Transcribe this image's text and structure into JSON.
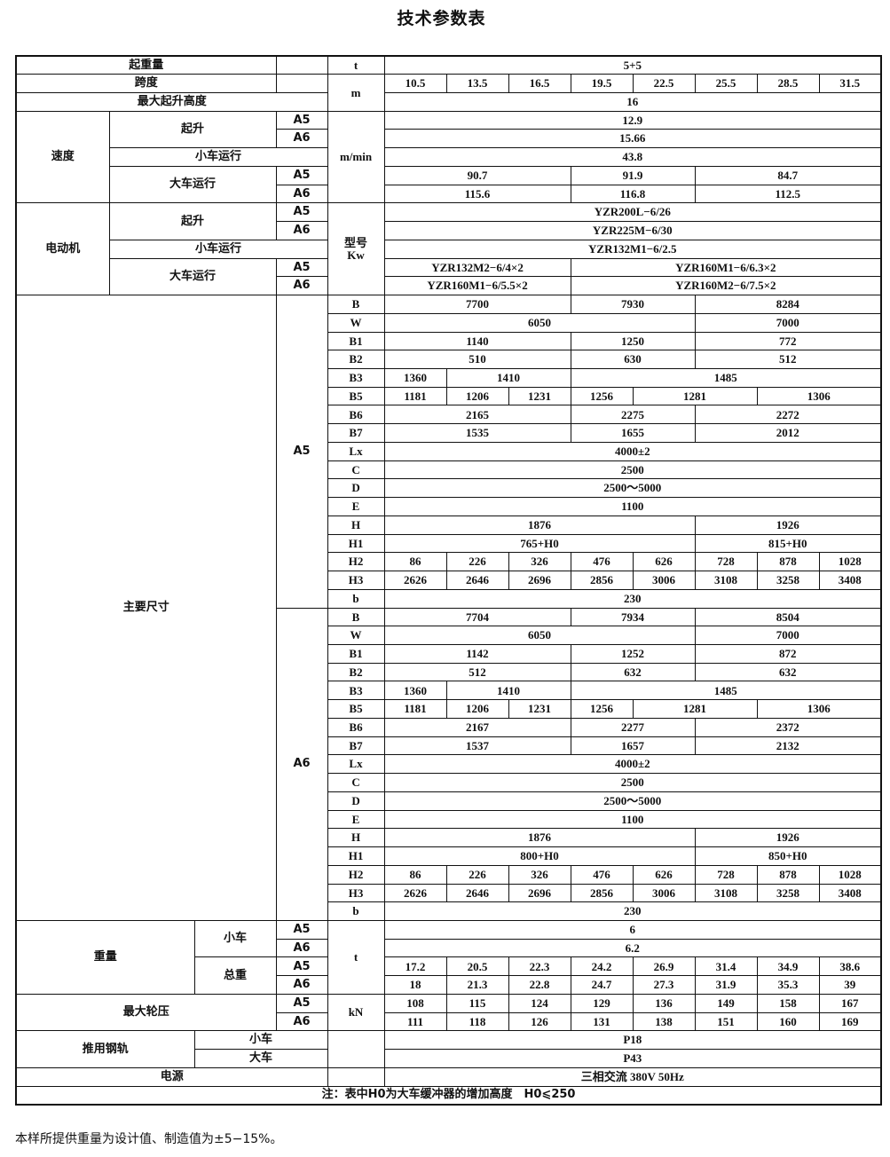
{
  "title": "技术参数表",
  "labels": {
    "capacity": "起重量",
    "span": "跨度",
    "max_lift_height": "最大起升高度",
    "speed": "速度",
    "hoist": "起升",
    "trolley_travel": "小车运行",
    "crane_travel": "大车运行",
    "motor": "电动机",
    "main_dims": "主要尺寸",
    "weight": "重量",
    "trolley": "小车",
    "total_weight": "总重",
    "max_wheel_load": "最大轮压",
    "rail": "推用钢轨",
    "crane": "大车",
    "power": "电源",
    "a5": "A5",
    "a6": "A6",
    "note": "注：表中H0为大车缓冲器的增加高度　H0⩽250"
  },
  "units": {
    "t": "t",
    "m": "m",
    "m_min": "m/min",
    "motor": "型号\nKw",
    "kN": "kN"
  },
  "capacity": [
    {
      "v": "5+5",
      "n": 8
    }
  ],
  "spans": [
    {
      "v": "10.5",
      "n": 1
    },
    {
      "v": "13.5",
      "n": 1
    },
    {
      "v": "16.5",
      "n": 1
    },
    {
      "v": "19.5",
      "n": 1
    },
    {
      "v": "22.5",
      "n": 1
    },
    {
      "v": "25.5",
      "n": 1
    },
    {
      "v": "28.5",
      "n": 1
    },
    {
      "v": "31.5",
      "n": 1
    }
  ],
  "max_lift_height": [
    {
      "v": "16",
      "n": 8
    }
  ],
  "speed": {
    "hoist_a5": [
      {
        "v": "12.9",
        "n": 8
      }
    ],
    "hoist_a6": [
      {
        "v": "15.66",
        "n": 8
      }
    ],
    "trolley": [
      {
        "v": "43.8",
        "n": 8
      }
    ],
    "crane_a5": [
      {
        "v": "90.7",
        "n": 3
      },
      {
        "v": "91.9",
        "n": 2
      },
      {
        "v": "84.7",
        "n": 3
      }
    ],
    "crane_a6": [
      {
        "v": "115.6",
        "n": 3
      },
      {
        "v": "116.8",
        "n": 2
      },
      {
        "v": "112.5",
        "n": 3
      }
    ]
  },
  "motor": {
    "hoist_a5": [
      {
        "v": "YZR200L−6/26",
        "n": 8
      }
    ],
    "hoist_a6": [
      {
        "v": "YZR225M−6/30",
        "n": 8
      }
    ],
    "trolley": [
      {
        "v": "YZR132M1−6/2.5",
        "n": 8
      }
    ],
    "crane_a5": [
      {
        "v": "YZR132M2−6/4×2",
        "n": 3
      },
      {
        "v": "YZR160M1−6/6.3×2",
        "n": 5
      }
    ],
    "crane_a6": [
      {
        "v": "YZR160M1−6/5.5×2",
        "n": 3
      },
      {
        "v": "YZR160M2−6/7.5×2",
        "n": 5
      }
    ]
  },
  "dims": {
    "a5": [
      {
        "label": "B",
        "cells": [
          {
            "v": "7700",
            "n": 3
          },
          {
            "v": "7930",
            "n": 2
          },
          {
            "v": "8284",
            "n": 3
          }
        ]
      },
      {
        "label": "W",
        "cells": [
          {
            "v": "6050",
            "n": 5
          },
          {
            "v": "7000",
            "n": 3
          }
        ]
      },
      {
        "label": "B1",
        "cells": [
          {
            "v": "1140",
            "n": 3
          },
          {
            "v": "1250",
            "n": 2
          },
          {
            "v": "772",
            "n": 3
          }
        ]
      },
      {
        "label": "B2",
        "cells": [
          {
            "v": "510",
            "n": 3
          },
          {
            "v": "630",
            "n": 2
          },
          {
            "v": "512",
            "n": 3
          }
        ]
      },
      {
        "label": "B3",
        "cells": [
          {
            "v": "1360",
            "n": 1
          },
          {
            "v": "1410",
            "n": 2
          },
          {
            "v": "1485",
            "n": 5
          }
        ]
      },
      {
        "label": "B5",
        "cells": [
          {
            "v": "1181",
            "n": 1
          },
          {
            "v": "1206",
            "n": 1
          },
          {
            "v": "1231",
            "n": 1
          },
          {
            "v": "1256",
            "n": 1
          },
          {
            "v": "1281",
            "n": 2
          },
          {
            "v": "1306",
            "n": 2
          }
        ]
      },
      {
        "label": "B6",
        "cells": [
          {
            "v": "2165",
            "n": 3
          },
          {
            "v": "2275",
            "n": 2
          },
          {
            "v": "2272",
            "n": 3
          }
        ]
      },
      {
        "label": "B7",
        "cells": [
          {
            "v": "1535",
            "n": 3
          },
          {
            "v": "1655",
            "n": 2
          },
          {
            "v": "2012",
            "n": 3
          }
        ]
      },
      {
        "label": "Lx",
        "cells": [
          {
            "v": "4000±2",
            "n": 8
          }
        ]
      },
      {
        "label": "C",
        "cells": [
          {
            "v": "2500",
            "n": 8
          }
        ]
      },
      {
        "label": "D",
        "cells": [
          {
            "v": "2500～5000",
            "n": 8
          }
        ]
      },
      {
        "label": "E",
        "cells": [
          {
            "v": "1100",
            "n": 8
          }
        ]
      },
      {
        "label": "H",
        "cells": [
          {
            "v": "1876",
            "n": 5
          },
          {
            "v": "1926",
            "n": 3
          }
        ]
      },
      {
        "label": "H1",
        "cells": [
          {
            "v": "765+H0",
            "n": 5
          },
          {
            "v": "815+H0",
            "n": 3
          }
        ]
      },
      {
        "label": "H2",
        "cells": [
          {
            "v": "86",
            "n": 1
          },
          {
            "v": "226",
            "n": 1
          },
          {
            "v": "326",
            "n": 1
          },
          {
            "v": "476",
            "n": 1
          },
          {
            "v": "626",
            "n": 1
          },
          {
            "v": "728",
            "n": 1
          },
          {
            "v": "878",
            "n": 1
          },
          {
            "v": "1028",
            "n": 1
          }
        ]
      },
      {
        "label": "H3",
        "cells": [
          {
            "v": "2626",
            "n": 1
          },
          {
            "v": "2646",
            "n": 1
          },
          {
            "v": "2696",
            "n": 1
          },
          {
            "v": "2856",
            "n": 1
          },
          {
            "v": "3006",
            "n": 1
          },
          {
            "v": "3108",
            "n": 1
          },
          {
            "v": "3258",
            "n": 1
          },
          {
            "v": "3408",
            "n": 1
          }
        ]
      },
      {
        "label": "b",
        "cells": [
          {
            "v": "230",
            "n": 8
          }
        ]
      }
    ],
    "a6": [
      {
        "label": "B",
        "cells": [
          {
            "v": "7704",
            "n": 3
          },
          {
            "v": "7934",
            "n": 2
          },
          {
            "v": "8504",
            "n": 3
          }
        ]
      },
      {
        "label": "W",
        "cells": [
          {
            "v": "6050",
            "n": 5
          },
          {
            "v": "7000",
            "n": 3
          }
        ]
      },
      {
        "label": "B1",
        "cells": [
          {
            "v": "1142",
            "n": 3
          },
          {
            "v": "1252",
            "n": 2
          },
          {
            "v": "872",
            "n": 3
          }
        ]
      },
      {
        "label": "B2",
        "cells": [
          {
            "v": "512",
            "n": 3
          },
          {
            "v": "632",
            "n": 2
          },
          {
            "v": "632",
            "n": 3
          }
        ]
      },
      {
        "label": "B3",
        "cells": [
          {
            "v": "1360",
            "n": 1
          },
          {
            "v": "1410",
            "n": 2
          },
          {
            "v": "1485",
            "n": 5
          }
        ]
      },
      {
        "label": "B5",
        "cells": [
          {
            "v": "1181",
            "n": 1
          },
          {
            "v": "1206",
            "n": 1
          },
          {
            "v": "1231",
            "n": 1
          },
          {
            "v": "1256",
            "n": 1
          },
          {
            "v": "1281",
            "n": 2
          },
          {
            "v": "1306",
            "n": 2
          }
        ]
      },
      {
        "label": "B6",
        "cells": [
          {
            "v": "2167",
            "n": 3
          },
          {
            "v": "2277",
            "n": 2
          },
          {
            "v": "2372",
            "n": 3
          }
        ]
      },
      {
        "label": "B7",
        "cells": [
          {
            "v": "1537",
            "n": 3
          },
          {
            "v": "1657",
            "n": 2
          },
          {
            "v": "2132",
            "n": 3
          }
        ]
      },
      {
        "label": "Lx",
        "cells": [
          {
            "v": "4000±2",
            "n": 8
          }
        ]
      },
      {
        "label": "C",
        "cells": [
          {
            "v": "2500",
            "n": 8
          }
        ]
      },
      {
        "label": "D",
        "cells": [
          {
            "v": "2500～5000",
            "n": 8
          }
        ]
      },
      {
        "label": "E",
        "cells": [
          {
            "v": "1100",
            "n": 8
          }
        ]
      },
      {
        "label": "H",
        "cells": [
          {
            "v": "1876",
            "n": 5
          },
          {
            "v": "1926",
            "n": 3
          }
        ]
      },
      {
        "label": "H1",
        "cells": [
          {
            "v": "800+H0",
            "n": 5
          },
          {
            "v": "850+H0",
            "n": 3
          }
        ]
      },
      {
        "label": "H2",
        "cells": [
          {
            "v": "86",
            "n": 1
          },
          {
            "v": "226",
            "n": 1
          },
          {
            "v": "326",
            "n": 1
          },
          {
            "v": "476",
            "n": 1
          },
          {
            "v": "626",
            "n": 1
          },
          {
            "v": "728",
            "n": 1
          },
          {
            "v": "878",
            "n": 1
          },
          {
            "v": "1028",
            "n": 1
          }
        ]
      },
      {
        "label": "H3",
        "cells": [
          {
            "v": "2626",
            "n": 1
          },
          {
            "v": "2646",
            "n": 1
          },
          {
            "v": "2696",
            "n": 1
          },
          {
            "v": "2856",
            "n": 1
          },
          {
            "v": "3006",
            "n": 1
          },
          {
            "v": "3108",
            "n": 1
          },
          {
            "v": "3258",
            "n": 1
          },
          {
            "v": "3408",
            "n": 1
          }
        ]
      },
      {
        "label": "b",
        "cells": [
          {
            "v": "230",
            "n": 8
          }
        ]
      }
    ]
  },
  "weight": {
    "trolley_a5": [
      {
        "v": "6",
        "n": 8
      }
    ],
    "trolley_a6": [
      {
        "v": "6.2",
        "n": 8
      }
    ],
    "total_a5": [
      {
        "v": "17.2",
        "n": 1
      },
      {
        "v": "20.5",
        "n": 1
      },
      {
        "v": "22.3",
        "n": 1
      },
      {
        "v": "24.2",
        "n": 1
      },
      {
        "v": "26.9",
        "n": 1
      },
      {
        "v": "31.4",
        "n": 1
      },
      {
        "v": "34.9",
        "n": 1
      },
      {
        "v": "38.6",
        "n": 1
      }
    ],
    "total_a6": [
      {
        "v": "18",
        "n": 1
      },
      {
        "v": "21.3",
        "n": 1
      },
      {
        "v": "22.8",
        "n": 1
      },
      {
        "v": "24.7",
        "n": 1
      },
      {
        "v": "27.3",
        "n": 1
      },
      {
        "v": "31.9",
        "n": 1
      },
      {
        "v": "35.3",
        "n": 1
      },
      {
        "v": "39",
        "n": 1
      }
    ]
  },
  "wheel_load": {
    "a5": [
      {
        "v": "108",
        "n": 1
      },
      {
        "v": "115",
        "n": 1
      },
      {
        "v": "124",
        "n": 1
      },
      {
        "v": "129",
        "n": 1
      },
      {
        "v": "136",
        "n": 1
      },
      {
        "v": "149",
        "n": 1
      },
      {
        "v": "158",
        "n": 1
      },
      {
        "v": "167",
        "n": 1
      }
    ],
    "a6": [
      {
        "v": "111",
        "n": 1
      },
      {
        "v": "118",
        "n": 1
      },
      {
        "v": "126",
        "n": 1
      },
      {
        "v": "131",
        "n": 1
      },
      {
        "v": "138",
        "n": 1
      },
      {
        "v": "151",
        "n": 1
      },
      {
        "v": "160",
        "n": 1
      },
      {
        "v": "169",
        "n": 1
      }
    ]
  },
  "rail": {
    "trolley": [
      {
        "v": "P18",
        "n": 8
      }
    ],
    "crane": [
      {
        "v": "P43",
        "n": 8
      }
    ]
  },
  "power": [
    {
      "v": "三相交流 380V 50Hz",
      "n": 8
    }
  ],
  "footnote": "本样所提供重量为设计值、制造值为±5−15%。"
}
